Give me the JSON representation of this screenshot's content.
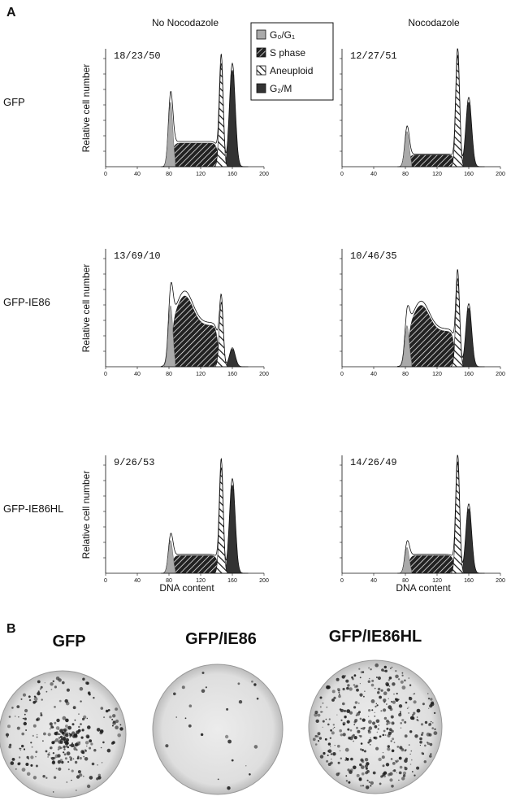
{
  "figure": {
    "panel_a_label": "A",
    "panel_b_label": "B",
    "columns": [
      "No Nocodazole",
      "Nocodazole"
    ],
    "legend": [
      "G₀/G₁",
      "S phase",
      "Aneuploid",
      "G₂/M"
    ],
    "rows": [
      {
        "label": "GFP",
        "annotations": [
          "18/23/50",
          "12/27/51"
        ]
      },
      {
        "label": "GFP-IE86",
        "annotations": [
          "13/69/10",
          "10/46/35"
        ]
      },
      {
        "label": "GFP-IE86HL",
        "annotations": [
          "9/26/53",
          "14/26/49"
        ]
      }
    ],
    "y_axis_label": "Relative cell number",
    "x_axis_label": "DNA content",
    "x_ticks": [
      0,
      40,
      80,
      120,
      160,
      200
    ],
    "plates": [
      "GFP",
      "GFP/IE86",
      "GFP/IE86HL"
    ]
  }
}
